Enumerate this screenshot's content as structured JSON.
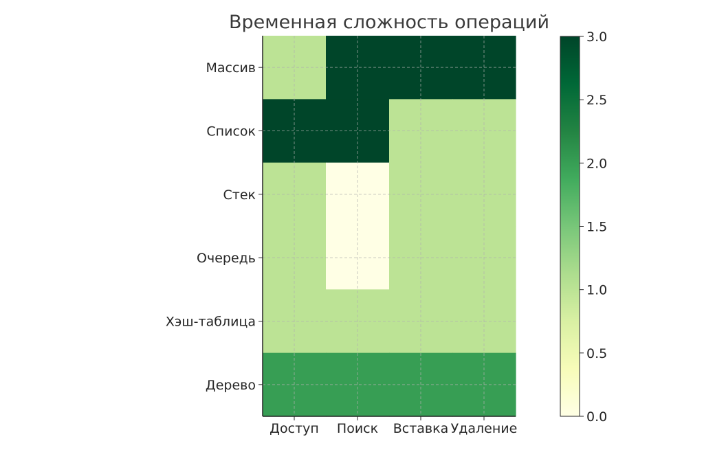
{
  "chart_data": {
    "type": "heatmap",
    "title": "Временная сложность операций",
    "xlabel": "",
    "ylabel": "",
    "columns": [
      "Доступ",
      "Поиск",
      "Вставка",
      "Удаление"
    ],
    "rows": [
      "Массив",
      "Список",
      "Стек",
      "Очередь",
      "Хэш-таблица",
      "Дерево"
    ],
    "values": [
      [
        1,
        3,
        3,
        3
      ],
      [
        3,
        3,
        1,
        1
      ],
      [
        1,
        0,
        1,
        1
      ],
      [
        1,
        0,
        1,
        1
      ],
      [
        1,
        1,
        1,
        1
      ],
      [
        2,
        2,
        2,
        2
      ]
    ],
    "colorscale": "greens",
    "vmin": 0,
    "vmax": 3,
    "grid": true,
    "colorbar": {
      "ticks": [
        "0.0",
        "0.5",
        "1.0",
        "1.5",
        "2.0",
        "2.5",
        "3.0"
      ],
      "tick_values": [
        0,
        0.5,
        1,
        1.5,
        2,
        2.5,
        3
      ],
      "placement": "right"
    }
  }
}
